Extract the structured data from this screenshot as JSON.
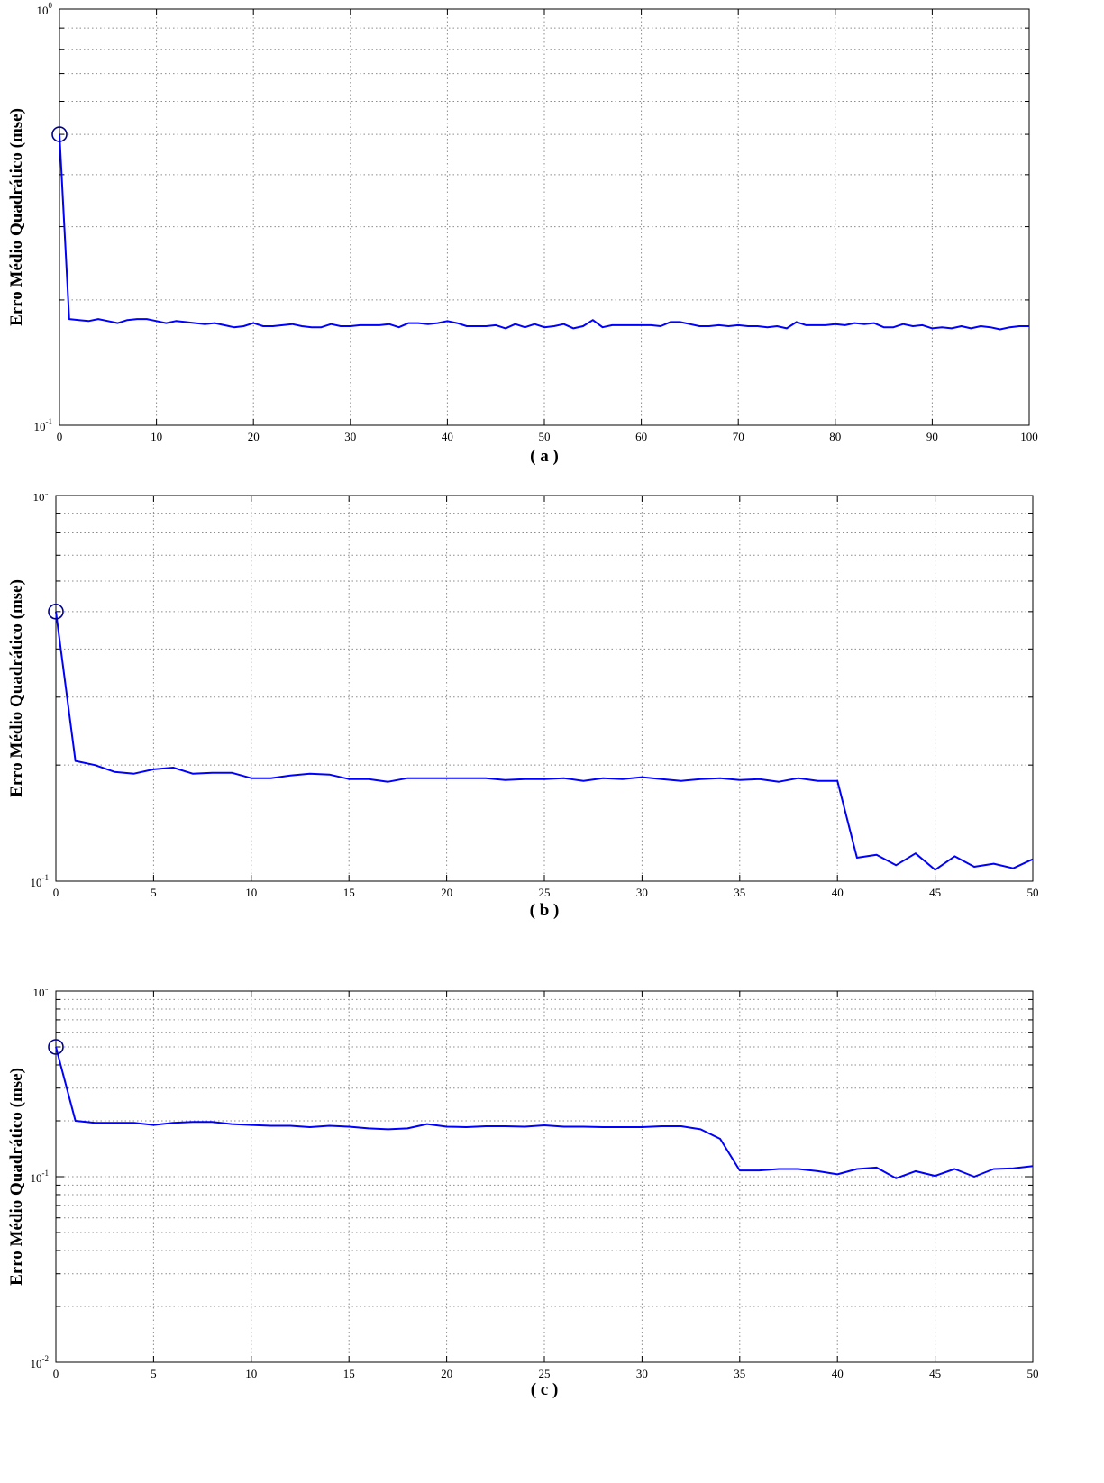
{
  "colors": {
    "line": "#0000ff",
    "marker": "#00008b",
    "grid": "#8c8c8c",
    "axis": "#000000"
  },
  "chart_data": [
    {
      "type": "line",
      "caption": "( a )",
      "ylabel": "Erro Médio Quadrático  (mse)",
      "xlabel": "",
      "xlim": [
        0,
        100
      ],
      "ylim": [
        0.1,
        1
      ],
      "yscale": "log",
      "grid": true,
      "xticks": [
        0,
        10,
        20,
        30,
        40,
        50,
        60,
        70,
        80,
        90,
        100
      ],
      "yticks": [
        {
          "base": "10",
          "exp": "-1",
          "value": 0.1
        },
        {
          "base": "10",
          "exp": "0",
          "value": 1
        }
      ],
      "marker": {
        "shape": "circle",
        "x": 0,
        "y": 0.5
      },
      "series": [
        {
          "x": [
            0,
            1,
            2,
            3,
            4,
            5,
            6,
            7,
            8,
            9,
            10,
            11,
            12,
            13,
            14,
            15,
            16,
            17,
            18,
            19,
            20,
            21,
            22,
            23,
            24,
            25,
            26,
            27,
            28,
            29,
            30,
            31,
            32,
            33,
            34,
            35,
            36,
            37,
            38,
            39,
            40,
            41,
            42,
            43,
            44,
            45,
            46,
            47,
            48,
            49,
            50,
            51,
            52,
            53,
            54,
            55,
            56,
            57,
            58,
            59,
            60,
            61,
            62,
            63,
            64,
            65,
            66,
            67,
            68,
            69,
            70,
            71,
            72,
            73,
            74,
            75,
            76,
            77,
            78,
            79,
            80,
            81,
            82,
            83,
            84,
            85,
            86,
            87,
            88,
            89,
            90,
            91,
            92,
            93,
            94,
            95,
            96,
            97,
            98,
            99,
            100
          ],
          "y": [
            0.5,
            0.18,
            0.179,
            0.178,
            0.18,
            0.178,
            0.176,
            0.179,
            0.18,
            0.18,
            0.178,
            0.176,
            0.178,
            0.177,
            0.176,
            0.175,
            0.176,
            0.174,
            0.172,
            0.173,
            0.176,
            0.173,
            0.173,
            0.174,
            0.175,
            0.173,
            0.172,
            0.172,
            0.175,
            0.173,
            0.173,
            0.174,
            0.174,
            0.174,
            0.175,
            0.172,
            0.176,
            0.176,
            0.175,
            0.176,
            0.178,
            0.176,
            0.173,
            0.173,
            0.173,
            0.174,
            0.171,
            0.175,
            0.172,
            0.175,
            0.172,
            0.173,
            0.175,
            0.171,
            0.173,
            0.179,
            0.172,
            0.174,
            0.174,
            0.174,
            0.174,
            0.174,
            0.173,
            0.177,
            0.177,
            0.175,
            0.173,
            0.173,
            0.174,
            0.173,
            0.174,
            0.173,
            0.173,
            0.172,
            0.173,
            0.171,
            0.177,
            0.174,
            0.174,
            0.174,
            0.175,
            0.174,
            0.176,
            0.175,
            0.176,
            0.172,
            0.172,
            0.175,
            0.173,
            0.174,
            0.171,
            0.172,
            0.171,
            0.173,
            0.171,
            0.173,
            0.172,
            0.17,
            0.172,
            0.173,
            0.173
          ]
        }
      ]
    },
    {
      "type": "line",
      "caption": "( b )",
      "ylabel": "Erro Médio Quadrático  (mse)",
      "xlabel": "",
      "xlim": [
        0,
        50
      ],
      "ylim": [
        0.1,
        1
      ],
      "yscale": "log",
      "grid": true,
      "xticks": [
        0,
        5,
        10,
        15,
        20,
        25,
        30,
        35,
        40,
        45,
        50
      ],
      "yticks": [
        {
          "base": "10",
          "exp": "-1",
          "value": 0.1
        },
        {
          "base": "10",
          "exp": "0",
          "value": 1
        }
      ],
      "marker": {
        "shape": "circle",
        "x": 0,
        "y": 0.5
      },
      "series": [
        {
          "x": [
            0,
            1,
            2,
            3,
            4,
            5,
            6,
            7,
            8,
            9,
            10,
            11,
            12,
            13,
            14,
            15,
            16,
            17,
            18,
            19,
            20,
            21,
            22,
            23,
            24,
            25,
            26,
            27,
            28,
            29,
            30,
            31,
            32,
            33,
            34,
            35,
            36,
            37,
            38,
            39,
            40,
            41,
            42,
            43,
            44,
            45,
            46,
            47,
            48,
            49,
            50
          ],
          "y": [
            0.5,
            0.205,
            0.2,
            0.192,
            0.19,
            0.195,
            0.197,
            0.19,
            0.191,
            0.191,
            0.185,
            0.185,
            0.188,
            0.19,
            0.189,
            0.184,
            0.184,
            0.181,
            0.185,
            0.185,
            0.185,
            0.185,
            0.185,
            0.183,
            0.184,
            0.184,
            0.185,
            0.182,
            0.185,
            0.184,
            0.186,
            0.184,
            0.182,
            0.184,
            0.185,
            0.183,
            0.184,
            0.181,
            0.185,
            0.182,
            0.182,
            0.115,
            0.117,
            0.11,
            0.118,
            0.107,
            0.116,
            0.109,
            0.111,
            0.108,
            0.114
          ]
        }
      ]
    },
    {
      "type": "line",
      "caption": "( c )",
      "ylabel": "Erro Médio Quadrático  (mse)",
      "xlabel": "",
      "xlim": [
        0,
        50
      ],
      "ylim": [
        0.01,
        1
      ],
      "yscale": "log",
      "grid": true,
      "xticks": [
        0,
        5,
        10,
        15,
        20,
        25,
        30,
        35,
        40,
        45,
        50
      ],
      "yticks": [
        {
          "base": "10",
          "exp": "-2",
          "value": 0.01
        },
        {
          "base": "10",
          "exp": "-1",
          "value": 0.1
        },
        {
          "base": "10",
          "exp": "0",
          "value": 1
        }
      ],
      "marker": {
        "shape": "circle",
        "x": 0,
        "y": 0.5
      },
      "series": [
        {
          "x": [
            0,
            1,
            2,
            3,
            4,
            5,
            6,
            7,
            8,
            9,
            10,
            11,
            12,
            13,
            14,
            15,
            16,
            17,
            18,
            19,
            20,
            21,
            22,
            23,
            24,
            25,
            26,
            27,
            28,
            29,
            30,
            31,
            32,
            33,
            34,
            35,
            36,
            37,
            38,
            39,
            40,
            41,
            42,
            43,
            44,
            45,
            46,
            47,
            48,
            49,
            50
          ],
          "y": [
            0.5,
            0.2,
            0.195,
            0.195,
            0.195,
            0.19,
            0.195,
            0.197,
            0.197,
            0.192,
            0.19,
            0.188,
            0.188,
            0.185,
            0.188,
            0.186,
            0.182,
            0.18,
            0.182,
            0.192,
            0.186,
            0.185,
            0.187,
            0.187,
            0.186,
            0.189,
            0.186,
            0.186,
            0.185,
            0.185,
            0.185,
            0.187,
            0.187,
            0.18,
            0.16,
            0.108,
            0.108,
            0.11,
            0.11,
            0.107,
            0.103,
            0.11,
            0.112,
            0.098,
            0.107,
            0.101,
            0.11,
            0.1,
            0.11,
            0.111,
            0.114
          ]
        }
      ]
    }
  ]
}
